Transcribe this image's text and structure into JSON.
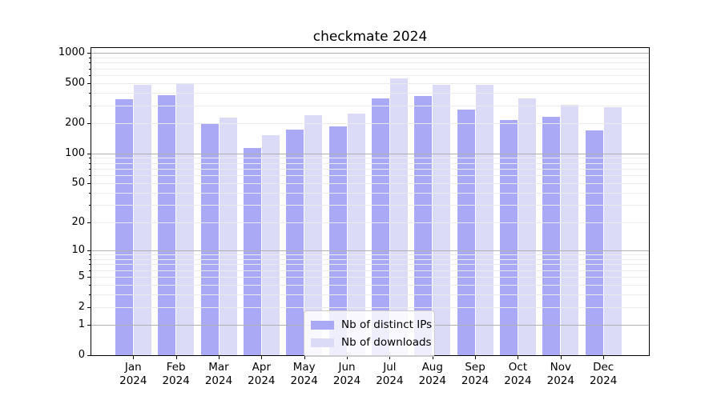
{
  "chart_data": {
    "type": "bar",
    "title": "checkmate 2024",
    "categories": [
      "Jan 2024",
      "Feb 2024",
      "Mar 2024",
      "Apr 2024",
      "May 2024",
      "Jun 2024",
      "Jul 2024",
      "Aug 2024",
      "Sep 2024",
      "Oct 2024",
      "Nov 2024",
      "Dec 2024"
    ],
    "series": [
      {
        "name": "Nb of distinct IPs",
        "color": "#a9a9f6",
        "values": [
          350,
          380,
          195,
          112,
          172,
          186,
          356,
          376,
          275,
          215,
          230,
          168
        ]
      },
      {
        "name": "Nb of downloads",
        "color": "#dbdbf8",
        "values": [
          478,
          492,
          228,
          153,
          240,
          250,
          555,
          484,
          482,
          356,
          303,
          287
        ]
      }
    ],
    "xlabel": "",
    "ylabel": "",
    "yscale": "log1p",
    "ylim": [
      0,
      1120
    ],
    "yticks": [
      0,
      1,
      2,
      5,
      10,
      20,
      50,
      100,
      200,
      500,
      1000
    ],
    "grid": "on",
    "legend_position": "lower center"
  },
  "colors": {
    "major_grid": "#b0b0b0",
    "minor_grid": "#ebebeb",
    "axis": "#000000"
  }
}
